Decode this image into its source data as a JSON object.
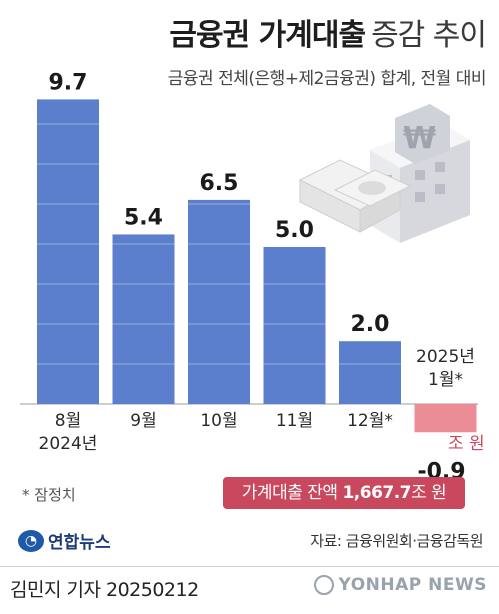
{
  "title": {
    "strong": "금융권 가계대출",
    "light": "증감 추이"
  },
  "subtitle": "금융권 전체(은행+제2금융권) 합계, 전월 대비",
  "chart_data": {
    "type": "bar",
    "title": "금융권 가계대출 증감 추이",
    "subtitle": "금융권 전체(은행+제2금융권) 합계, 전월 대비",
    "categories": [
      "8월\n2024년",
      "9월",
      "10월",
      "11월",
      "12월*",
      "2025년\n1월*"
    ],
    "values": [
      9.7,
      5.4,
      6.5,
      5.0,
      2.0,
      -0.9
    ],
    "value_labels": [
      "9.7",
      "5.4",
      "6.5",
      "5.0",
      "2.0",
      "-0.9"
    ],
    "unit": "조 원",
    "ylim": [
      -1.2,
      10.5
    ],
    "grid": false,
    "colors": {
      "positive": "#5b7fcc",
      "negative": "#ea8d96"
    }
  },
  "note": "* 잠정치",
  "balance": {
    "label": "가계대출 잔액",
    "value": "1,667.7",
    "unit": "조 원"
  },
  "logo": {
    "text": "연합뉴스",
    "icon": "yonhap-logo-icon"
  },
  "source": "자료: 금융위원회·금융감독원",
  "author": "김민지 기자  20250212",
  "watermark": "YONHAP NEWS",
  "icons": {
    "illustration": "bank-money-icon"
  }
}
